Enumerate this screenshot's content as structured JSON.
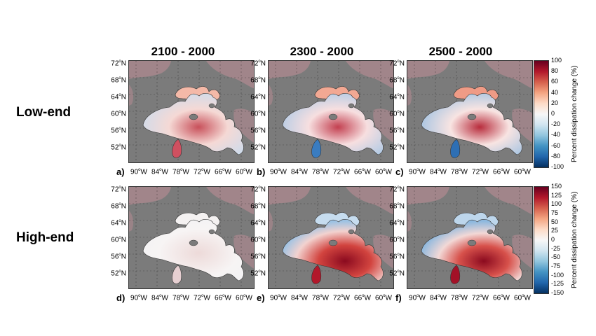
{
  "columns": [
    "2100 - 2000",
    "2300 - 2000",
    "2500 - 2000"
  ],
  "rows": [
    "Low-end",
    "High-end"
  ],
  "panel_labels": [
    "a)",
    "b)",
    "c)",
    "d)",
    "e)",
    "f)"
  ],
  "latitude_ticks": [
    "72",
    "68",
    "64",
    "60",
    "56",
    "52"
  ],
  "longitude_ticks": [
    "90",
    "84",
    "78",
    "72",
    "66",
    "60"
  ],
  "lat_suffix": "N",
  "lon_suffix": "W",
  "degree_symbol": "o",
  "colorbars": [
    {
      "label": "Percent dissipation change (%)",
      "ticks": [
        "100",
        "80",
        "60",
        "40",
        "20",
        "0",
        "-20",
        "-40",
        "-60",
        "-80",
        "-100"
      ]
    },
    {
      "label": "Percent dissipation change (%)",
      "ticks": [
        "150",
        "125",
        "100",
        "75",
        "50",
        "25",
        "0",
        "-25",
        "-50",
        "-75",
        "-100",
        "-125",
        "-150"
      ]
    }
  ],
  "colors": {
    "ocean_bg": "#7b7b7b",
    "land": "#a8878d",
    "positive": "#b2182b",
    "negative": "#2166ac",
    "neutral": "#f7f7f7"
  }
}
